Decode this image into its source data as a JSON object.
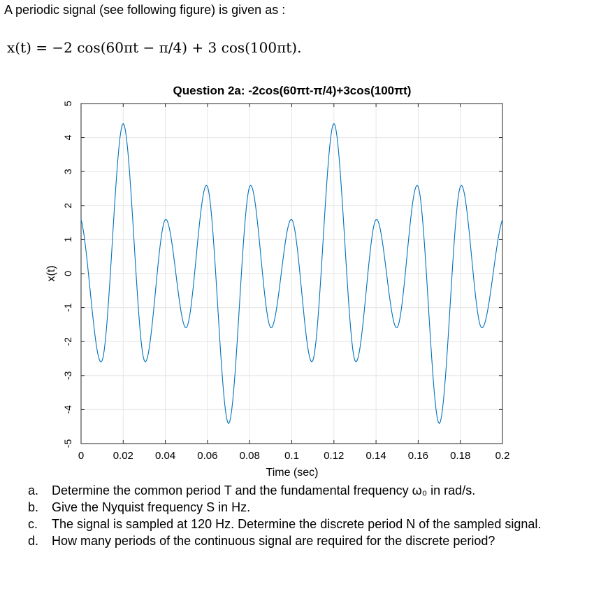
{
  "intro": "A periodic signal (see following figure) is given as :",
  "equation": "x(t) = −2 cos(60πt − π/4) + 3 cos(100πt).",
  "chart_data": {
    "type": "line",
    "title": "Question 2a: -2cos(60πt-π/4)+3cos(100πt)",
    "xlabel": "Time (sec)",
    "ylabel": "x(t)",
    "xlim": [
      0,
      0.2
    ],
    "ylim": [
      -5,
      5
    ],
    "xticks": [
      "0",
      "0.02",
      "0.04",
      "0.06",
      "0.08",
      "0.1",
      "0.12",
      "0.14",
      "0.16",
      "0.18",
      "0.2"
    ],
    "yticks": [
      "5",
      "4",
      "3",
      "2",
      "1",
      "0",
      "-1",
      "-2",
      "-3",
      "-4",
      "-5"
    ],
    "grid": true,
    "line_color": "#0072BD",
    "series": [
      {
        "x": [
          0,
          0.01,
          0.02,
          0.03,
          0.04,
          0.05,
          0.06,
          0.07,
          0.08,
          0.09,
          0.1,
          0.11,
          0.12,
          0.13,
          0.14,
          0.15,
          0.16,
          0.17,
          0.18,
          0.19,
          0.2
        ],
        "values": [
          1.59,
          -2.56,
          4.41,
          -2.56,
          1.59,
          -1.59,
          2.56,
          -4.41,
          2.56,
          -1.59,
          1.59,
          -2.56,
          4.41,
          -2.56,
          1.59,
          -1.59,
          2.56,
          -4.41,
          2.56,
          -1.59,
          1.59
        ]
      }
    ]
  },
  "questions": [
    {
      "label": "a.",
      "text": "Determine the common period T and the fundamental frequency ω₀ in rad/s."
    },
    {
      "label": "b.",
      "text": "Give the Nyquist frequency S in Hz."
    },
    {
      "label": "c.",
      "text": "The signal is sampled at 120 Hz. Determine the discrete period N of the sampled signal."
    },
    {
      "label": "d.",
      "text": "How many periods of the continuous signal are required for the discrete period?"
    }
  ]
}
